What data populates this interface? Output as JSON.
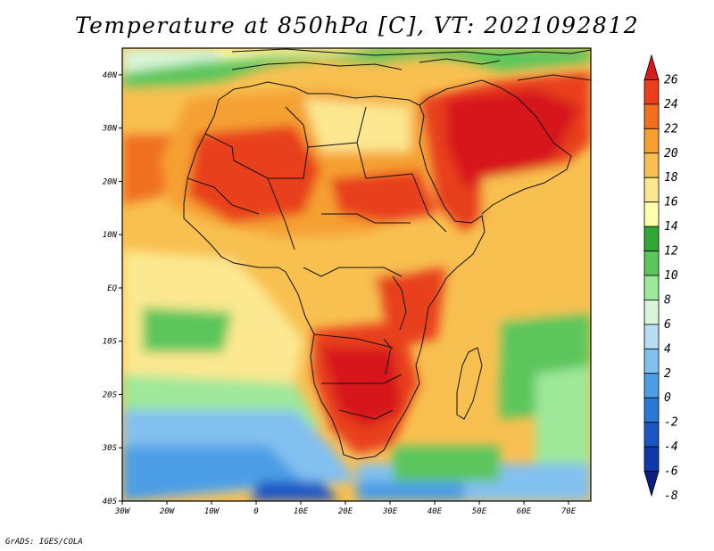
{
  "title": "Temperature at 850hPa [C], VT: 2021092812",
  "credit": "GrADS: IGES/COLA",
  "map": {
    "lat_labels": [
      "40N",
      "30N",
      "20N",
      "10N",
      "EQ",
      "10S",
      "20S",
      "30S",
      "40S"
    ],
    "lon_labels": [
      "30W",
      "20W",
      "10W",
      "0",
      "10E",
      "20E",
      "30E",
      "40E",
      "50E",
      "60E",
      "70E"
    ],
    "lat_range": [
      -40,
      45
    ],
    "lon_range": [
      -30,
      75
    ]
  },
  "colorbar": {
    "labels": [
      "26",
      "24",
      "22",
      "20",
      "18",
      "16",
      "14",
      "12",
      "10",
      "8",
      "6",
      "4",
      "2",
      "0",
      "-2",
      "-4",
      "-6",
      "-8"
    ],
    "colors": [
      "#d7191c",
      "#e8401c",
      "#f07020",
      "#f5a030",
      "#f8c050",
      "#fbe890",
      "#ffffb0",
      "#2fa836",
      "#5cc65c",
      "#9ee89a",
      "#d8f5d8",
      "#b8ddf5",
      "#82c0f0",
      "#4c9ee6",
      "#2a78d8",
      "#1c56c4",
      "#0f38a8",
      "#0a1f80"
    ]
  }
}
